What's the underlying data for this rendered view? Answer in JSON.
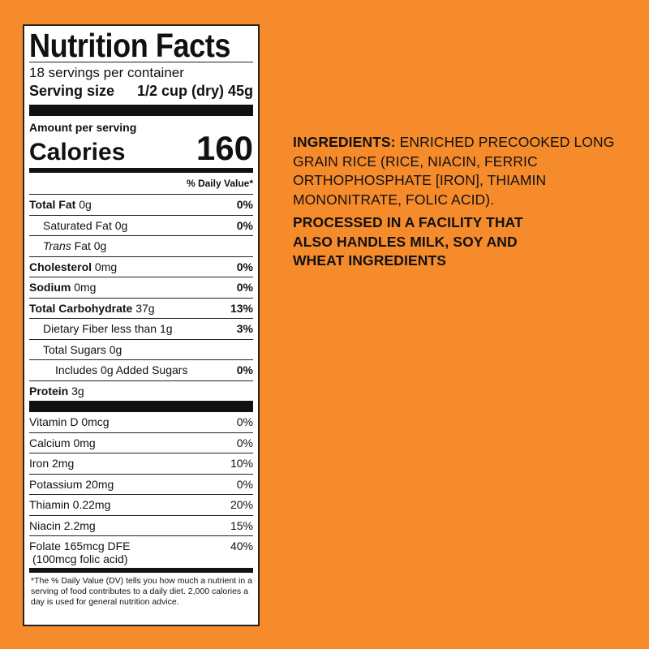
{
  "background_color": "#f68b2c",
  "label": {
    "title": "Nutrition Facts",
    "servings": "18 servings per container",
    "serving_size_label": "Serving size",
    "serving_size_value": "1/2 cup (dry) 45g",
    "amount_per_serving": "Amount per serving",
    "calories_label": "Calories",
    "calories_value": "160",
    "dv_header": "% Daily Value*",
    "nutrients": [
      {
        "name": "Total Fat",
        "amount": "0g",
        "dv": "0%"
      },
      {
        "name": "Saturated Fat",
        "amount": "0g",
        "dv": "0%"
      },
      {
        "name": "Trans",
        "amount": "Fat 0g",
        "dv": ""
      },
      {
        "name": "Cholesterol",
        "amount": "0mg",
        "dv": "0%"
      },
      {
        "name": "Sodium",
        "amount": "0mg",
        "dv": "0%"
      },
      {
        "name": "Total Carbohydrate",
        "amount": "37g",
        "dv": "13%"
      },
      {
        "name": "Dietary Fiber",
        "amount": "less than 1g",
        "dv": "3%"
      },
      {
        "name": "Total Sugars",
        "amount": "0g",
        "dv": ""
      },
      {
        "name": "Includes 0g Added Sugars",
        "amount": "",
        "dv": "0%"
      },
      {
        "name": "Protein",
        "amount": "3g",
        "dv": ""
      }
    ],
    "vitamins": [
      {
        "text": "Vitamin D 0mcg",
        "dv": "0%"
      },
      {
        "text": "Calcium 0mg",
        "dv": "0%"
      },
      {
        "text": "Iron 2mg",
        "dv": "10%"
      },
      {
        "text": "Potassium 20mg",
        "dv": "0%"
      },
      {
        "text": "Thiamin 0.22mg",
        "dv": "20%"
      },
      {
        "text": "Niacin 2.2mg",
        "dv": "15%"
      },
      {
        "text": "Folate 165mcg DFE",
        "sub": "(100mcg folic acid)",
        "dv": "40%"
      }
    ],
    "footnote": "*The % Daily Value (DV) tells you how much a nutrient in a serving of food contributes to a daily diet. 2,000 calories a day is used for general nutrition advice."
  },
  "ingredients": {
    "label": "INGREDIENTS:",
    "text": "ENRICHED PRECOOKED LONG GRAIN RICE (RICE, NIACIN, FERRIC ORTHOPHOSPHATE [IRON], THIAMIN MONONITRATE, FOLIC ACID).",
    "allergen": "PROCESSED IN A FACILITY THAT ALSO HANDLES MILK, SOY AND WHEAT INGREDIENTS"
  }
}
